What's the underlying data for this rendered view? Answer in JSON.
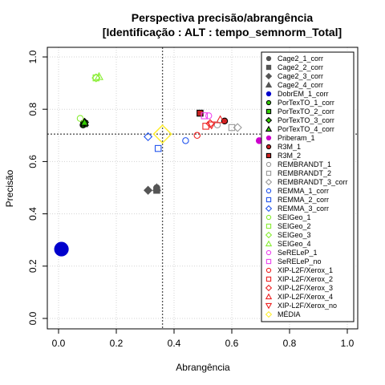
{
  "chart_data": {
    "type": "scatter",
    "title_line1": "Perspectiva precisão/abrangência",
    "title_line2": "[Identificação : ALT : tempo_semnorm_Total]",
    "xlabel": "Abrangência",
    "ylabel": "Precisão",
    "xlim": [
      0,
      1
    ],
    "ylim": [
      0,
      1
    ],
    "xticks": [
      "0.0",
      "0.2",
      "0.4",
      "0.6",
      "0.8",
      "1.0"
    ],
    "yticks": [
      "0.0",
      "0.2",
      "0.4",
      "0.6",
      "0.8",
      "1.0"
    ],
    "grid": true,
    "legend_position": "right",
    "reference_lines": {
      "x": 0.36,
      "y": 0.705
    },
    "series": [
      {
        "name": "Cage2_1_corr",
        "marker": "circle",
        "color": "#555555",
        "fill": "#555555",
        "points": [
          [
            0.34,
            0.5
          ]
        ]
      },
      {
        "name": "Cage2_2_corr",
        "marker": "square",
        "color": "#555555",
        "fill": "#555555",
        "points": [
          [
            0.34,
            0.49
          ]
        ]
      },
      {
        "name": "Cage2_3_corr",
        "marker": "diamond",
        "color": "#555555",
        "fill": "#555555",
        "points": [
          [
            0.31,
            0.49
          ]
        ]
      },
      {
        "name": "Cage2_4_corr",
        "marker": "triangle-up",
        "color": "#555555",
        "fill": "#555555",
        "points": [
          [
            0.34,
            0.5
          ]
        ]
      },
      {
        "name": "DobrEM_1_corr",
        "marker": "circle",
        "color": "#0000cc",
        "fill": "#0000cc",
        "points": [
          [
            0.01,
            0.265
          ]
        ],
        "size": "large"
      },
      {
        "name": "PorTexTO_1_corr",
        "marker": "circle",
        "color": "#000000",
        "fill": "#33cc00",
        "points": [
          [
            0.085,
            0.74
          ]
        ]
      },
      {
        "name": "PorTexTO_2_corr",
        "marker": "square",
        "color": "#000000",
        "fill": "#33cc00",
        "points": [
          [
            0.09,
            0.745
          ]
        ]
      },
      {
        "name": "PorTexTO_3_corr",
        "marker": "diamond",
        "color": "#000000",
        "fill": "#33cc00",
        "points": [
          [
            0.09,
            0.75
          ]
        ]
      },
      {
        "name": "PorTexTO_4_corr",
        "marker": "triangle-up",
        "color": "#000000",
        "fill": "#33cc00",
        "points": [
          [
            0.09,
            0.75
          ]
        ]
      },
      {
        "name": "Priberam_1",
        "marker": "circle",
        "color": "#cc00cc",
        "fill": "#cc00cc",
        "points": [
          [
            0.695,
            0.68
          ]
        ]
      },
      {
        "name": "R3M_1",
        "marker": "circle",
        "color": "#000000",
        "fill": "#cc2222",
        "points": [
          [
            0.575,
            0.755
          ]
        ]
      },
      {
        "name": "R3M_2",
        "marker": "square",
        "color": "#000000",
        "fill": "#cc2222",
        "points": [
          [
            0.49,
            0.785
          ]
        ]
      },
      {
        "name": "REMBRANDT_1",
        "marker": "circle",
        "color": "#999999",
        "fill": "none",
        "points": [
          [
            0.55,
            0.74
          ]
        ]
      },
      {
        "name": "REMBRANDT_2",
        "marker": "square",
        "color": "#999999",
        "fill": "none",
        "points": [
          [
            0.6,
            0.73
          ]
        ]
      },
      {
        "name": "REMBRANDT_3_corr",
        "marker": "diamond",
        "color": "#999999",
        "fill": "none",
        "points": [
          [
            0.62,
            0.73
          ]
        ]
      },
      {
        "name": "REMMA_1_corr",
        "marker": "circle",
        "color": "#2255ee",
        "fill": "none",
        "points": [
          [
            0.44,
            0.68
          ]
        ]
      },
      {
        "name": "REMMA_2_corr",
        "marker": "square",
        "color": "#2255ee",
        "fill": "none",
        "points": [
          [
            0.345,
            0.65
          ]
        ]
      },
      {
        "name": "REMMA_3_corr",
        "marker": "diamond",
        "color": "#2255ee",
        "fill": "none",
        "points": [
          [
            0.31,
            0.695
          ]
        ]
      },
      {
        "name": "SEIGeo_1",
        "marker": "circle",
        "color": "#88ee33",
        "fill": "none",
        "points": [
          [
            0.075,
            0.765
          ]
        ]
      },
      {
        "name": "SEIGeo_2",
        "marker": "square",
        "color": "#88ee33",
        "fill": "none",
        "points": [
          [
            0.13,
            0.92
          ]
        ]
      },
      {
        "name": "SEIGeo_3",
        "marker": "diamond",
        "color": "#88ee33",
        "fill": "none",
        "points": [
          [
            0.13,
            0.92
          ]
        ]
      },
      {
        "name": "SEIGeo_4",
        "marker": "triangle-up",
        "color": "#88ee33",
        "fill": "none",
        "points": [
          [
            0.14,
            0.925
          ]
        ]
      },
      {
        "name": "SeRELeP_1",
        "marker": "circle",
        "color": "#ee44ee",
        "fill": "none",
        "points": [
          [
            0.52,
            0.775
          ]
        ]
      },
      {
        "name": "SeRELeP_no",
        "marker": "square",
        "color": "#ee44ee",
        "fill": "none",
        "points": [
          [
            0.505,
            0.775
          ]
        ]
      },
      {
        "name": "XIP-L2F/Xerox_1",
        "marker": "circle",
        "color": "#ee2222",
        "fill": "none",
        "points": [
          [
            0.48,
            0.7
          ]
        ]
      },
      {
        "name": "XIP-L2F/Xerox_2",
        "marker": "square",
        "color": "#ee2222",
        "fill": "none",
        "points": [
          [
            0.51,
            0.735
          ]
        ]
      },
      {
        "name": "XIP-L2F/Xerox_3",
        "marker": "diamond",
        "color": "#ee2222",
        "fill": "none",
        "points": [
          [
            0.525,
            0.745
          ]
        ]
      },
      {
        "name": "XIP-L2F/Xerox_4",
        "marker": "triangle-up",
        "color": "#ee2222",
        "fill": "none",
        "points": [
          [
            0.56,
            0.76
          ]
        ]
      },
      {
        "name": "XIP-L2F/Xerox_no",
        "marker": "triangle-down",
        "color": "#ee2222",
        "fill": "none",
        "points": [
          [
            0.53,
            0.74
          ]
        ]
      },
      {
        "name": "MÉDIA",
        "marker": "diamond",
        "color": "#ffee33",
        "fill": "none",
        "points": [
          [
            0.36,
            0.705
          ]
        ],
        "size": "large"
      }
    ]
  }
}
